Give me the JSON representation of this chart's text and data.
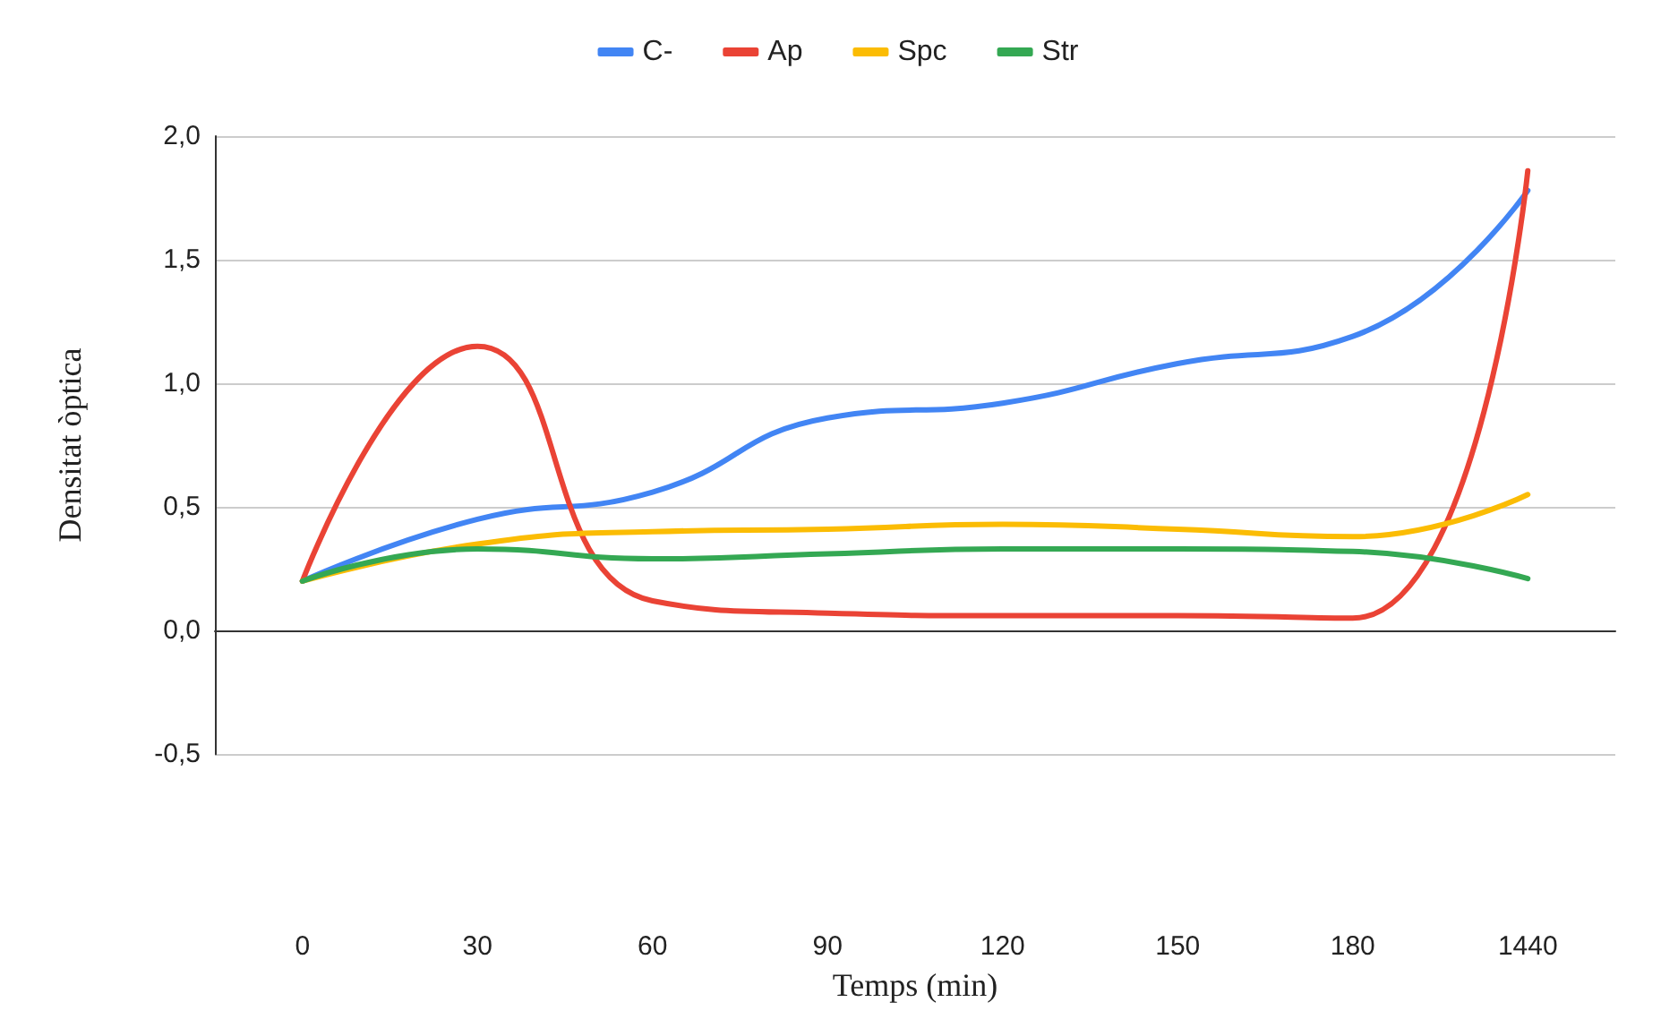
{
  "chart_data": {
    "type": "line",
    "xlabel": "Temps (min)",
    "ylabel": "Densitat òptica",
    "categories": [
      "0",
      "30",
      "60",
      "90",
      "120",
      "150",
      "180",
      "1440"
    ],
    "series": [
      {
        "name": "C-",
        "color": "#4285f4",
        "values": [
          0.2,
          0.45,
          0.56,
          0.86,
          0.92,
          1.08,
          1.19,
          1.78
        ]
      },
      {
        "name": "Ap",
        "color": "#ea4335",
        "values": [
          0.2,
          1.15,
          0.12,
          0.07,
          0.06,
          0.06,
          0.05,
          1.86
        ]
      },
      {
        "name": "Spc",
        "color": "#fbbc04",
        "values": [
          0.2,
          0.35,
          0.4,
          0.41,
          0.43,
          0.41,
          0.38,
          0.55
        ]
      },
      {
        "name": "Str",
        "color": "#34a853",
        "values": [
          0.2,
          0.33,
          0.29,
          0.31,
          0.33,
          0.33,
          0.32,
          0.21
        ]
      }
    ],
    "ylim": [
      -0.5,
      2.0
    ],
    "yticks": [
      {
        "value": -0.5,
        "label": "-0,5"
      },
      {
        "value": 0,
        "label": "0,0"
      },
      {
        "value": 0.5,
        "label": "0,5"
      },
      {
        "value": 1,
        "label": "1,0"
      },
      {
        "value": 1.5,
        "label": "1,5"
      },
      {
        "value": 2,
        "label": "2,0"
      }
    ],
    "grid": "y",
    "legend": "top",
    "marker": "none",
    "line_style": "solid"
  }
}
